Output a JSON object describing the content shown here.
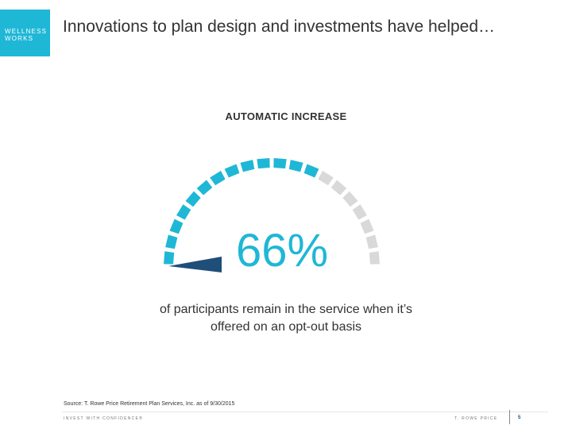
{
  "logo": {
    "line1": "WELLNESS",
    "line2": "WORKS",
    "color": "#1fb7d6"
  },
  "slide": {
    "title": "Innovations to plan design and investments have helped…"
  },
  "gauge": {
    "label": "AUTOMATIC INCREASE",
    "value": 66,
    "value_text": "66%",
    "segments": 20,
    "fill_color": "#1fb7d6",
    "empty_color": "#d9d9d9",
    "needle_color": "#1f4e79"
  },
  "caption": {
    "line1": "of participants remain in the service when it’s",
    "line2": "offered on an opt-out basis"
  },
  "footer": {
    "source": "Source: T. Rowe Price Retirement Plan Services, Inc. as of 9/30/2015",
    "tagline": "INVEST WITH CONFIDENCE®",
    "brand": "T. ROWE PRICE",
    "page_number": "5"
  }
}
